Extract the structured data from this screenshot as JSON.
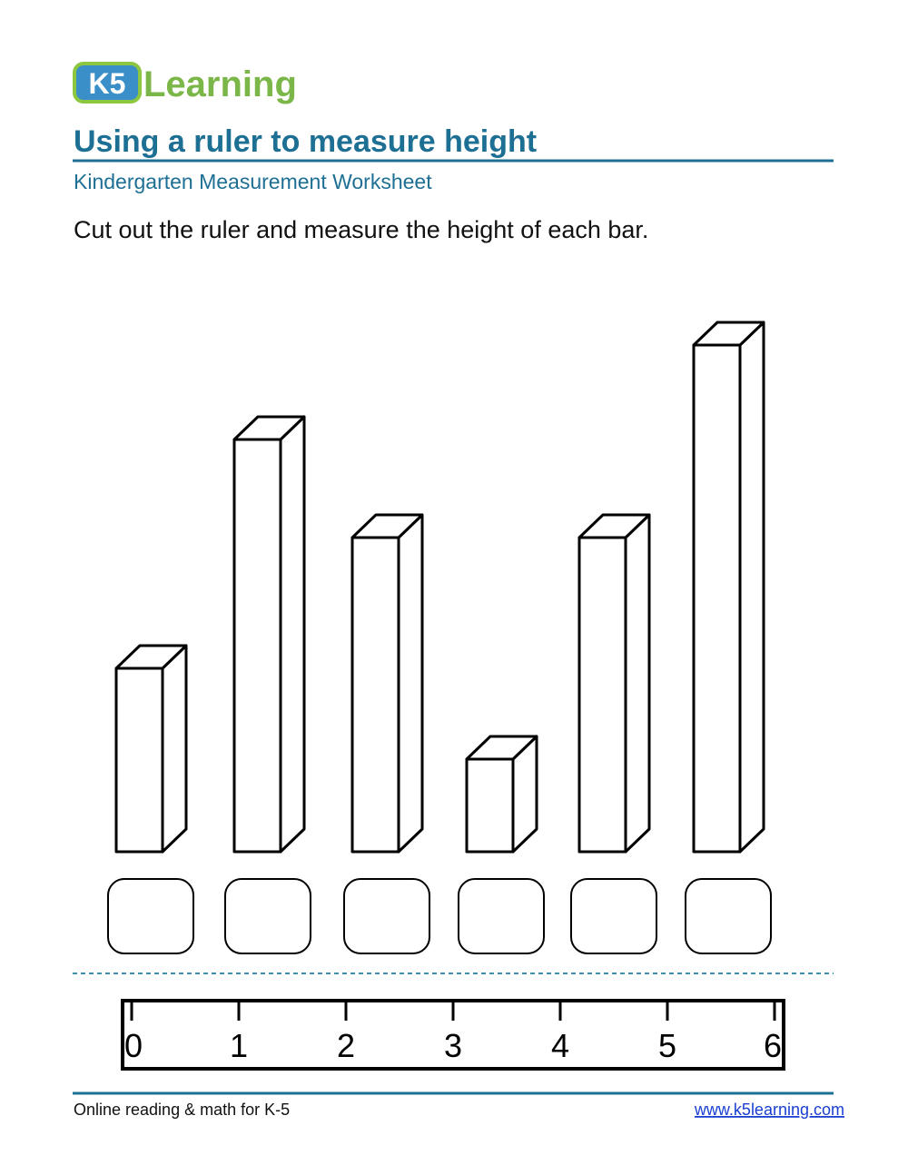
{
  "logo": {
    "badge": "K5",
    "word": "Learning"
  },
  "header": {
    "title": "Using a ruler to measure height",
    "subtitle": "Kindergarten Measurement Worksheet"
  },
  "instruction": "Cut out the ruler and measure the height of each bar.",
  "ruler": {
    "ticks": [
      0,
      1,
      2,
      3,
      4,
      5,
      6
    ]
  },
  "footer": {
    "left": "Online reading & math for K-5",
    "link": "www.k5learning.com"
  }
}
